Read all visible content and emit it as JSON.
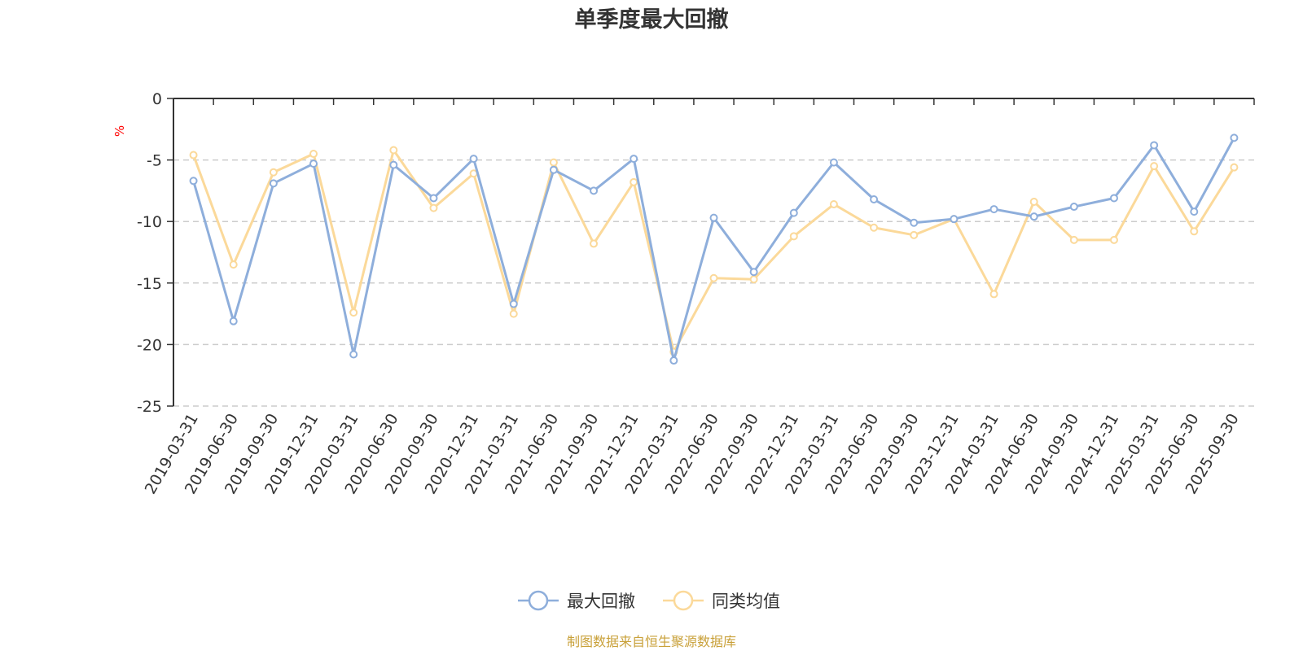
{
  "chart_data": {
    "type": "line",
    "title": "单季度最大回撤",
    "ylabel": "%",
    "ylim": [
      -25,
      0
    ],
    "yticks": [
      0,
      -5,
      -10,
      -15,
      -20,
      -25
    ],
    "grid": true,
    "legend_position": "bottom-center",
    "categories": [
      "2019-03-31",
      "2019-06-30",
      "2019-09-30",
      "2019-12-31",
      "2020-03-31",
      "2020-06-30",
      "2020-09-30",
      "2020-12-31",
      "2021-03-31",
      "2021-06-30",
      "2021-09-30",
      "2021-12-31",
      "2022-03-31",
      "2022-06-30",
      "2022-09-30",
      "2022-12-31",
      "2023-03-31",
      "2023-06-30",
      "2023-09-30",
      "2023-12-31",
      "2024-03-31",
      "2024-06-30",
      "2024-09-30",
      "2024-12-31",
      "2025-03-31",
      "2025-06-30",
      "2025-09-30"
    ],
    "series": [
      {
        "name": "最大回撤",
        "color": "#8eaedb",
        "values": [
          -6.7,
          -18.1,
          -6.9,
          -5.3,
          -20.8,
          -5.4,
          -8.1,
          -4.9,
          -16.7,
          -5.8,
          -7.5,
          -4.9,
          -21.3,
          -9.7,
          -14.1,
          -9.3,
          -5.2,
          -8.2,
          -10.1,
          -9.8,
          -9.0,
          -9.6,
          -8.8,
          -8.1,
          -3.8,
          -9.2,
          -3.2
        ]
      },
      {
        "name": "同类均值",
        "color": "#fbd99a",
        "values": [
          -4.6,
          -13.5,
          -6.0,
          -4.5,
          -17.4,
          -4.2,
          -8.9,
          -6.1,
          -17.5,
          -5.2,
          -11.8,
          -6.8,
          -20.6,
          -14.6,
          -14.7,
          -11.2,
          -8.6,
          -10.5,
          -11.1,
          -9.8,
          -15.9,
          -8.4,
          -11.5,
          -11.5,
          -5.5,
          -10.8,
          -5.6
        ]
      }
    ],
    "source": "制图数据来自恒生聚源数据库",
    "colors": {
      "axis": "#333333",
      "grid": "#cccccc",
      "unit": "#ff0000",
      "source": "#c9a13a"
    }
  }
}
